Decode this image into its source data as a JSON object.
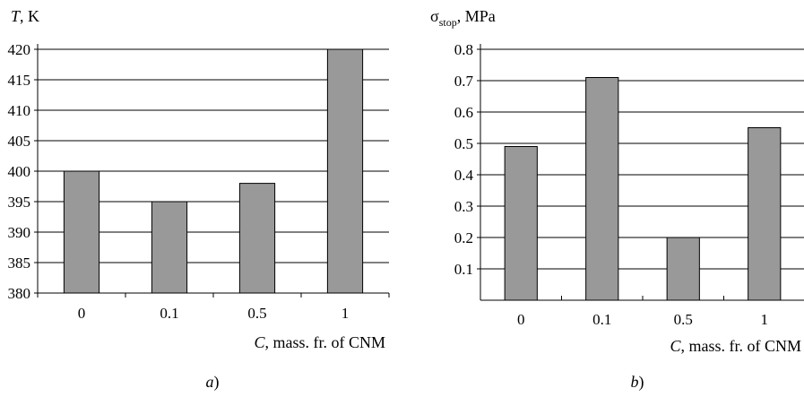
{
  "chart_data": [
    {
      "type": "bar",
      "panel": "a",
      "caption_letter": "a",
      "caption_suffix": ")",
      "ylabel_italic": "T",
      "ylabel_rest": ", K",
      "xlabel_italic": "C",
      "xlabel_rest": ", mass. fr. of CNM",
      "categories": [
        "0",
        "0.1",
        "0.5",
        "1"
      ],
      "values": [
        400,
        395,
        398,
        420
      ],
      "ylim": [
        380,
        420
      ],
      "yticks": [
        "380",
        "385",
        "390",
        "395",
        "400",
        "405",
        "410",
        "415",
        "420"
      ],
      "ytick_values": [
        380,
        385,
        390,
        395,
        400,
        405,
        410,
        415,
        420
      ],
      "grid": true,
      "bar_color": "#999999"
    },
    {
      "type": "bar",
      "panel": "b",
      "caption_letter": "b",
      "caption_suffix": ")",
      "ylabel_sigma": "σ",
      "ylabel_sub": "stop",
      "ylabel_rest": ", MPa",
      "xlabel_italic": "C",
      "xlabel_rest": ", mass. fr. of CNM",
      "categories": [
        "0",
        "0.1",
        "0.5",
        "1"
      ],
      "values": [
        0.49,
        0.71,
        0.2,
        0.55
      ],
      "ylim": [
        0,
        0.8
      ],
      "yticks": [
        "0.1",
        "0.2",
        "0.3",
        "0.4",
        "0.5",
        "0.6",
        "0.7",
        "0.8"
      ],
      "ytick_values": [
        0.1,
        0.2,
        0.3,
        0.4,
        0.5,
        0.6,
        0.7,
        0.8
      ],
      "grid": true,
      "bar_color": "#999999"
    }
  ]
}
